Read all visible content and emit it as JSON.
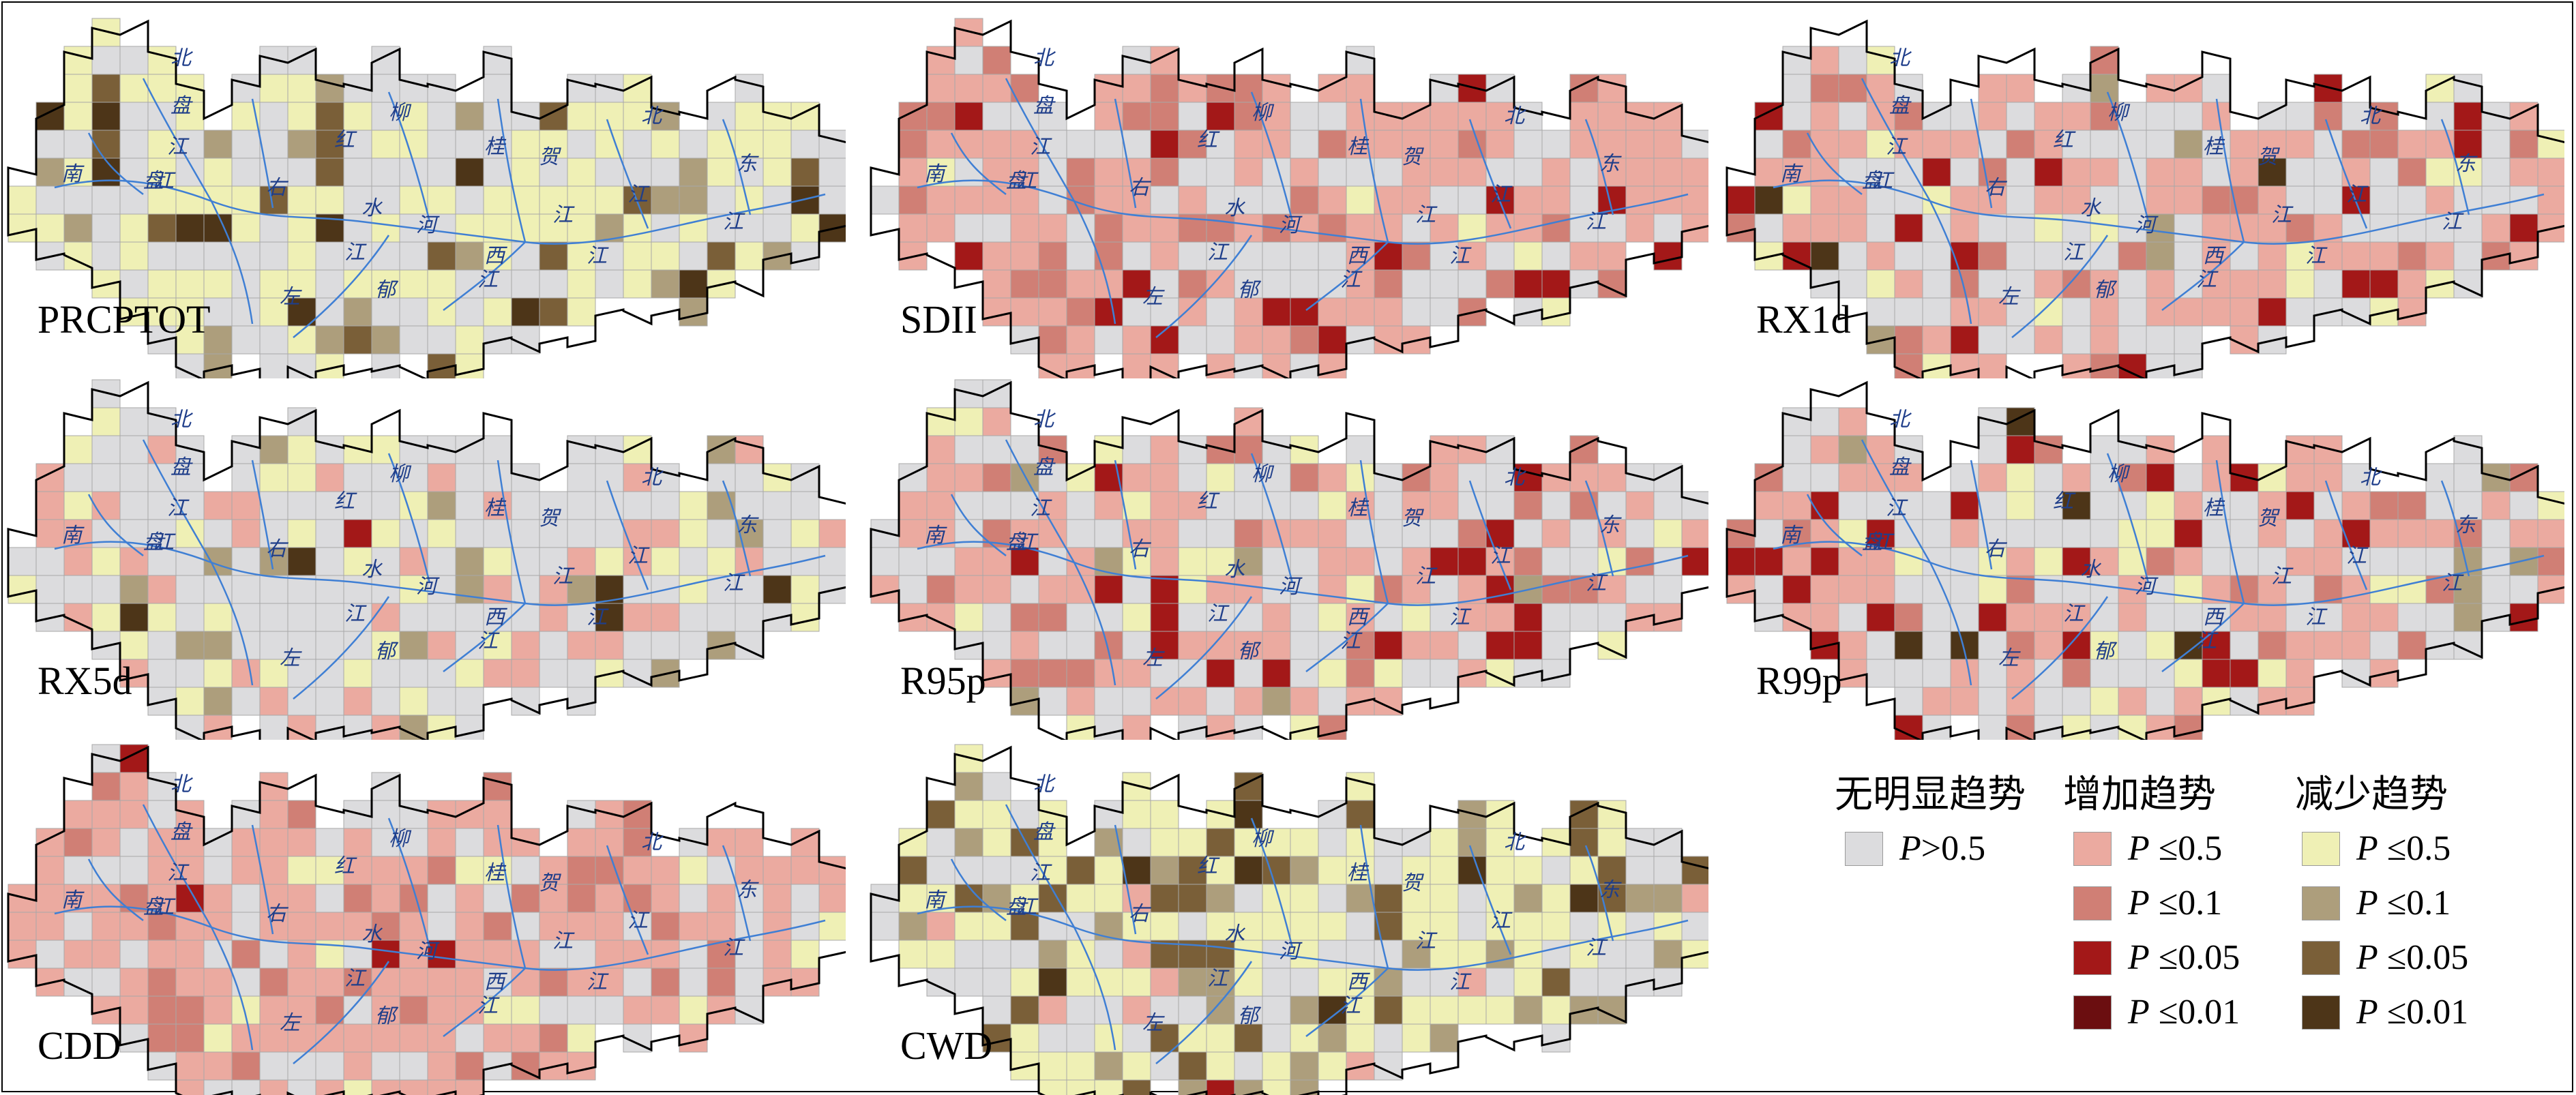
{
  "colors": {
    "gray": "#dcdcde",
    "inc_05": "#ebaaa0",
    "inc_01": "#d07f75",
    "inc_005": "#a31818",
    "inc_001": "#6b0e10",
    "dec_05": "#eff0b5",
    "dec_01": "#ad9e7c",
    "dec_005": "#7a5f38",
    "dec_001": "#4d3518",
    "river": "#3f7fd4",
    "boundary": "#000000"
  },
  "river_chars": [
    "北",
    "盘",
    "江",
    "南",
    "盘",
    "江",
    "柳",
    "红",
    "右",
    "水",
    "江",
    "河",
    "桂",
    "贺",
    "江",
    "左",
    "郁",
    "江",
    "西",
    "江",
    "北",
    "江",
    "东",
    "江"
  ],
  "panels": [
    {
      "id": "PRCPTOT",
      "label": "PRCPTOT",
      "col": 0,
      "row": 0,
      "mix": {
        "gray": 0.42,
        "dec_05": 0.36,
        "dec_01": 0.1,
        "dec_005": 0.07,
        "dec_001": 0.05
      }
    },
    {
      "id": "SDII",
      "label": "SDII",
      "col": 1,
      "row": 0,
      "mix": {
        "gray": 0.3,
        "inc_05": 0.45,
        "inc_01": 0.15,
        "inc_005": 0.07,
        "dec_05": 0.03
      }
    },
    {
      "id": "RX1d",
      "label": "RX1d",
      "col": 2,
      "row": 0,
      "mix": {
        "gray": 0.4,
        "inc_05": 0.34,
        "inc_01": 0.08,
        "inc_005": 0.06,
        "dec_05": 0.08,
        "dec_01": 0.02,
        "dec_001": 0.02
      }
    },
    {
      "id": "RX5d",
      "label": "RX5d",
      "col": 0,
      "row": 1,
      "mix": {
        "gray": 0.58,
        "inc_05": 0.2,
        "dec_05": 0.14,
        "dec_01": 0.05,
        "inc_005": 0.01,
        "dec_001": 0.02
      }
    },
    {
      "id": "R95p",
      "label": "R95p",
      "col": 1,
      "row": 1,
      "mix": {
        "gray": 0.4,
        "inc_05": 0.34,
        "inc_01": 0.1,
        "inc_005": 0.04,
        "dec_05": 0.09,
        "dec_01": 0.03
      }
    },
    {
      "id": "R99p",
      "label": "R99p",
      "col": 2,
      "row": 1,
      "mix": {
        "gray": 0.42,
        "inc_05": 0.3,
        "inc_01": 0.07,
        "inc_005": 0.07,
        "dec_05": 0.09,
        "dec_01": 0.03,
        "dec_001": 0.02
      }
    },
    {
      "id": "CDD",
      "label": "CDD",
      "col": 0,
      "row": 2,
      "mix": {
        "gray": 0.28,
        "inc_05": 0.55,
        "inc_01": 0.12,
        "inc_005": 0.01,
        "dec_05": 0.04
      }
    },
    {
      "id": "CWD",
      "label": "CWD",
      "col": 1,
      "row": 2,
      "mix": {
        "gray": 0.3,
        "dec_05": 0.38,
        "dec_01": 0.12,
        "dec_005": 0.1,
        "dec_001": 0.06,
        "inc_05": 0.03,
        "inc_005": 0.01
      }
    }
  ],
  "legend": {
    "no_trend_title": "无明显趋势",
    "increase_title": "增加趋势",
    "decrease_title": "减少趋势",
    "p_symbol": "P",
    "items": {
      "gray": ">0.5",
      "inc_05": "≤0.5",
      "inc_01": "≤0.1",
      "inc_005": "≤0.05",
      "inc_001": "≤0.01",
      "dec_05": "≤0.5",
      "dec_01": "≤0.1",
      "dec_005": "≤0.05",
      "dec_001": "≤0.01"
    }
  }
}
